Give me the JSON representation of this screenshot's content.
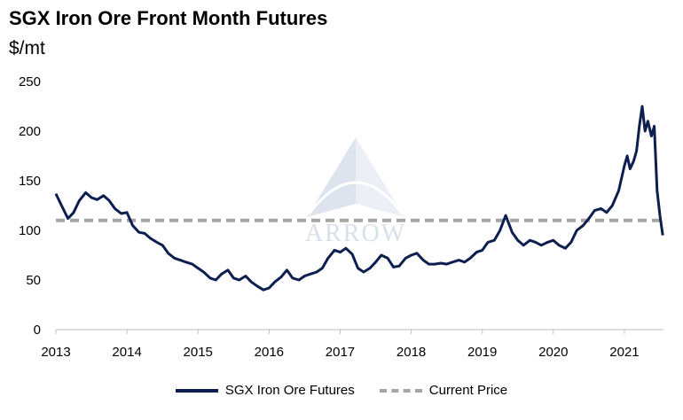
{
  "title": "SGX Iron Ore Front Month Futures",
  "subtitle": "$/mt",
  "watermark": "ARROW",
  "colors": {
    "series": "#0d1f4f",
    "reference": "#a6a6a6",
    "axis": "#bfbfbf"
  },
  "chart_data": {
    "type": "line",
    "title": "SGX Iron Ore Front Month Futures",
    "ylabel": "$/mt",
    "xlabel": "",
    "xlim": [
      2013,
      2021.55
    ],
    "ylim": [
      0,
      250
    ],
    "yticks": [
      0,
      50,
      100,
      150,
      200,
      250
    ],
    "xticks": [
      "2013",
      "2014",
      "2015",
      "2016",
      "2017",
      "2018",
      "2019",
      "2020",
      "2021"
    ],
    "grid": false,
    "legend_position": "bottom",
    "series": [
      {
        "name": "SGX Iron Ore Futures",
        "x": [
          2013.0,
          2013.08,
          2013.17,
          2013.25,
          2013.33,
          2013.42,
          2013.5,
          2013.58,
          2013.67,
          2013.75,
          2013.83,
          2013.92,
          2014.0,
          2014.08,
          2014.17,
          2014.25,
          2014.33,
          2014.42,
          2014.5,
          2014.58,
          2014.67,
          2014.75,
          2014.83,
          2014.92,
          2015.0,
          2015.08,
          2015.17,
          2015.25,
          2015.33,
          2015.42,
          2015.5,
          2015.58,
          2015.67,
          2015.75,
          2015.83,
          2015.92,
          2016.0,
          2016.08,
          2016.17,
          2016.25,
          2016.33,
          2016.42,
          2016.5,
          2016.58,
          2016.67,
          2016.75,
          2016.83,
          2016.92,
          2017.0,
          2017.08,
          2017.17,
          2017.25,
          2017.33,
          2017.42,
          2017.5,
          2017.58,
          2017.67,
          2017.75,
          2017.83,
          2017.92,
          2018.0,
          2018.08,
          2018.17,
          2018.25,
          2018.33,
          2018.42,
          2018.5,
          2018.58,
          2018.67,
          2018.75,
          2018.83,
          2018.92,
          2019.0,
          2019.08,
          2019.17,
          2019.25,
          2019.33,
          2019.42,
          2019.5,
          2019.58,
          2019.67,
          2019.75,
          2019.83,
          2019.92,
          2020.0,
          2020.08,
          2020.17,
          2020.25,
          2020.33,
          2020.42,
          2020.5,
          2020.58,
          2020.67,
          2020.75,
          2020.83,
          2020.92,
          2021.0,
          2021.04,
          2021.08,
          2021.13,
          2021.17,
          2021.21,
          2021.25,
          2021.29,
          2021.33,
          2021.38,
          2021.42,
          2021.46,
          2021.5,
          2021.54
        ],
        "values": [
          137,
          125,
          112,
          118,
          130,
          138,
          133,
          131,
          135,
          130,
          122,
          117,
          118,
          105,
          98,
          97,
          92,
          88,
          85,
          77,
          72,
          70,
          68,
          66,
          62,
          58,
          52,
          50,
          56,
          60,
          52,
          50,
          54,
          48,
          44,
          40,
          42,
          48,
          53,
          60,
          52,
          50,
          54,
          56,
          58,
          62,
          72,
          80,
          78,
          82,
          76,
          62,
          58,
          62,
          68,
          75,
          72,
          63,
          64,
          72,
          75,
          77,
          70,
          66,
          66,
          67,
          66,
          68,
          70,
          68,
          72,
          78,
          80,
          88,
          90,
          100,
          115,
          98,
          90,
          85,
          90,
          88,
          85,
          88,
          90,
          85,
          82,
          88,
          100,
          105,
          112,
          120,
          122,
          118,
          125,
          140,
          165,
          175,
          162,
          170,
          180,
          205,
          225,
          200,
          210,
          195,
          205,
          140,
          115,
          95
        ]
      },
      {
        "name": "Current Price",
        "x": [
          2013.0,
          2021.55
        ],
        "values": [
          110,
          110
        ]
      }
    ]
  }
}
